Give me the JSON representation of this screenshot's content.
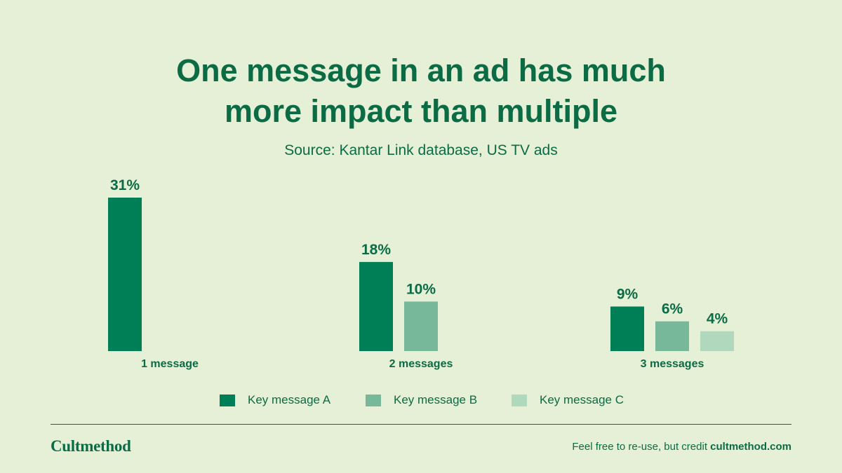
{
  "title": {
    "line1": "One message in an ad has much",
    "line2": "more impact than multiple"
  },
  "subtitle": "Source: Kantar Link database, US TV ads",
  "footer": {
    "brand": "Cultmethod",
    "credit_text": "Feel free to re-use, but credit ",
    "credit_link": "cultmethod.com"
  },
  "colors": {
    "background": "#e5f0d7",
    "text": "#0b6b45",
    "key_a": "#007f57",
    "key_b": "#78b89a",
    "key_c": "#b0d8bc"
  },
  "chart_data": {
    "type": "bar",
    "categories": [
      "1 message",
      "2 messages",
      "3 messages"
    ],
    "series": [
      {
        "name": "Key message A",
        "values": [
          31,
          18,
          9
        ],
        "labels": [
          "31%",
          "18%",
          "9%"
        ]
      },
      {
        "name": "Key message B",
        "values": [
          null,
          10,
          6
        ],
        "labels": [
          "",
          "10%",
          "6%"
        ]
      },
      {
        "name": "Key message C",
        "values": [
          null,
          null,
          4
        ],
        "labels": [
          "",
          "",
          "4%"
        ]
      }
    ],
    "ylim": [
      0,
      31
    ],
    "grid": false,
    "legend_position": "bottom"
  }
}
